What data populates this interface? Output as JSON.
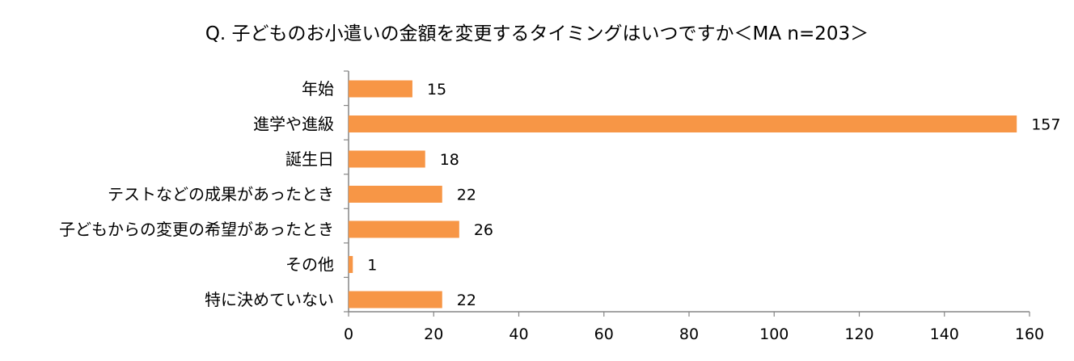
{
  "chart_data": {
    "type": "bar",
    "orientation": "horizontal",
    "title": "Q. 子どものお小遣いの金額を変更するタイミングはいつですか＜MA n=203＞",
    "categories": [
      "年始",
      "進学や進級",
      "誕生日",
      "テストなどの成果があったとき",
      "子どもからの変更の希望があったとき",
      "その他",
      "特に決めていない"
    ],
    "values": [
      15,
      157,
      18,
      22,
      26,
      1,
      22
    ],
    "xlim": [
      0,
      160
    ],
    "xticks": [
      0,
      20,
      40,
      60,
      80,
      100,
      120,
      140,
      160
    ],
    "grid": false,
    "bar_color": "#f79646",
    "xlabel": "",
    "ylabel": ""
  }
}
